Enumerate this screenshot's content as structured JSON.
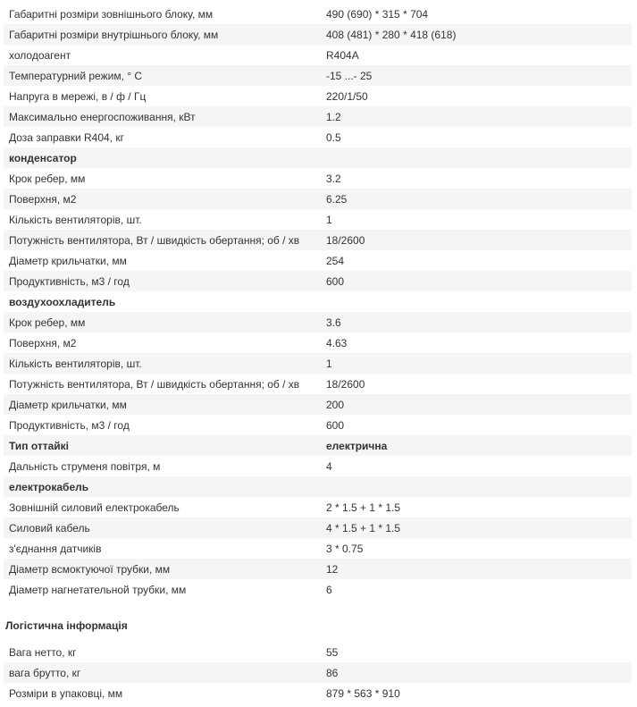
{
  "table": {
    "rows": [
      {
        "cells": [
          "Габаритні розміри зовнішнього блоку, мм",
          "490 (690) * 315 * 704"
        ]
      },
      {
        "cells": [
          "Габаритні розміри внутрішнього блоку, мм",
          "408 (481) * 280 * 418 (618)"
        ]
      },
      {
        "cells": [
          "холодоагент",
          "R404A"
        ]
      },
      {
        "cells": [
          "Температурний режим, ° С",
          "-15 ...- 25"
        ]
      },
      {
        "cells": [
          "Напруга в мережі, в / ф / Гц",
          "220/1/50"
        ]
      },
      {
        "cells": [
          "Максимально енергоспоживання, кВт",
          "1.2"
        ]
      },
      {
        "cells": [
          "Доза заправки R404, кг",
          "0.5"
        ]
      },
      {
        "cells": [
          "конденсатор"
        ],
        "bold": true
      },
      {
        "cells": [
          "Крок ребер, мм",
          "3.2"
        ]
      },
      {
        "cells": [
          "Поверхня, м2",
          "6.25"
        ]
      },
      {
        "cells": [
          "Кількість вентиляторів, шт.",
          "1"
        ]
      },
      {
        "cells": [
          "Потужність вентилятора, Вт / швидкість обертання; об / хв",
          "18/2600"
        ]
      },
      {
        "cells": [
          "Діаметр крильчатки, мм",
          "254"
        ]
      },
      {
        "cells": [
          "Продуктивність, м3 / год",
          "600"
        ]
      },
      {
        "cells": [
          "воздухоохладитель"
        ],
        "bold": true
      },
      {
        "cells": [
          "Крок ребер, мм",
          "3.6"
        ]
      },
      {
        "cells": [
          "Поверхня, м2",
          "4.63"
        ]
      },
      {
        "cells": [
          "Кількість вентиляторів, шт.",
          "1"
        ]
      },
      {
        "cells": [
          "Потужність вентилятора, Вт / швидкість обертання; об / хв",
          "18/2600"
        ]
      },
      {
        "cells": [
          "Діаметр крильчатки, мм",
          "200"
        ]
      },
      {
        "cells": [
          "Продуктивність, м3 / год",
          "600"
        ]
      },
      {
        "cells": [
          "Тип оттайкі",
          "електрична"
        ],
        "bold": true
      },
      {
        "cells": [
          "Дальність струменя повітря, м",
          "4"
        ]
      },
      {
        "cells": [
          "електрокабель"
        ],
        "bold": true
      },
      {
        "cells": [
          "Зовнішній силовий електрокабель",
          "2 * 1.5 + 1 * 1.5"
        ]
      },
      {
        "cells": [
          "Силовий кабель",
          "4 * 1.5 + 1 * 1.5"
        ]
      },
      {
        "cells": [
          "з'єднання датчиків",
          "3 * 0.75"
        ]
      },
      {
        "cells": [
          "Діаметр всмоктуючої трубки, мм",
          "12"
        ]
      },
      {
        "cells": [
          "Діаметр нагнетательной трубки, мм",
          "6"
        ]
      }
    ]
  },
  "logistics": {
    "title": "Логістична інформація",
    "rows": [
      {
        "cells": [
          "Вага нетто, кг",
          "55"
        ]
      },
      {
        "cells": [
          "вага брутто, кг",
          "86"
        ]
      },
      {
        "cells": [
          "Розміри в упаковці, мм",
          "879 * 563 * 910"
        ]
      }
    ]
  }
}
